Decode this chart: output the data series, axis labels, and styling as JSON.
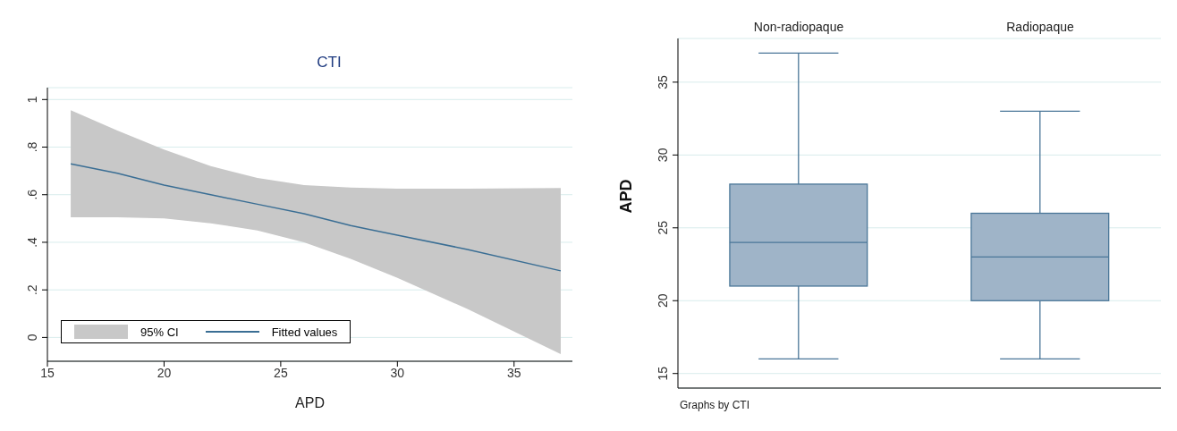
{
  "chart_data": [
    {
      "type": "line",
      "title": "CTI",
      "xlabel": "APD",
      "x": [
        16,
        18,
        20,
        22,
        24,
        26,
        28,
        30,
        33,
        37
      ],
      "xlim": [
        15,
        37.5
      ],
      "xticks": [
        15,
        20,
        25,
        30,
        35
      ],
      "ylim": [
        -0.1,
        1.05
      ],
      "yticks": [
        0,
        {
          "value": 0.2,
          "label": ".2"
        },
        {
          "value": 0.4,
          "label": ".4"
        },
        {
          "value": 0.6,
          "label": ".6"
        },
        {
          "value": 0.8,
          "label": ".8"
        },
        1
      ],
      "grid": "y",
      "legend": "bottom left",
      "marker": "none",
      "line_style": "solid",
      "series": [
        {
          "type": "area",
          "name": "95% CI",
          "color": "#c8c8c8",
          "values": [
            null,
            null,
            null,
            null,
            null,
            null,
            null,
            null,
            null,
            null
          ],
          "lower": [
            0.505,
            0.505,
            0.5,
            0.48,
            0.45,
            0.4,
            0.33,
            0.25,
            0.12,
            -0.07
          ],
          "upper": [
            0.955,
            0.87,
            0.79,
            0.72,
            0.67,
            0.64,
            0.63,
            0.625,
            0.625,
            0.628
          ]
        },
        {
          "type": "line",
          "name": "Fitted values",
          "color": "#3a6e94",
          "values": [
            0.73,
            0.69,
            0.64,
            0.6,
            0.56,
            0.52,
            0.47,
            0.43,
            0.37,
            0.28
          ]
        }
      ]
    },
    {
      "type": "box",
      "ylabel": "APD",
      "categories": [
        "Non-radiopaque",
        "Radiopaque"
      ],
      "color": "#9fb4c8",
      "ylim": [
        14,
        38
      ],
      "yticks": [
        15,
        20,
        25,
        30,
        35
      ],
      "grid": "y",
      "annotations": [
        "Graphs by CTI"
      ],
      "boxes": [
        {
          "low": 16,
          "q1": 21,
          "median": 24,
          "q3": 28,
          "high": 37
        },
        {
          "low": 16,
          "q1": 20,
          "median": 23,
          "q3": 26,
          "high": 33
        }
      ]
    }
  ]
}
